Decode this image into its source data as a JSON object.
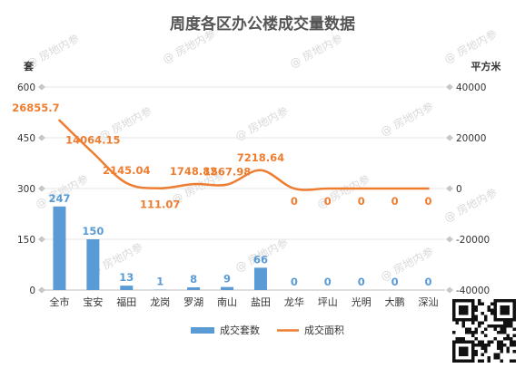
{
  "chart_data": {
    "type": "bar+line",
    "title": "周度各区办公楼成交量数据",
    "categories": [
      "全市",
      "宝安",
      "福田",
      "龙岗",
      "罗湖",
      "南山",
      "盐田",
      "龙华",
      "坪山",
      "光明",
      "大鹏",
      "深汕"
    ],
    "series": [
      {
        "name": "成交套数",
        "type": "bar",
        "axis": "left",
        "color": "#5b9bd5",
        "values": [
          247,
          150,
          13,
          1,
          8,
          9,
          66,
          0,
          0,
          0,
          0,
          0
        ],
        "labels": [
          "247",
          "150",
          "13",
          "1",
          "8",
          "9",
          "66",
          "0",
          "0",
          "0",
          "0",
          "0"
        ]
      },
      {
        "name": "成交面积",
        "type": "line",
        "smooth": true,
        "axis": "right",
        "color": "#ed7d31",
        "values": [
          26855.7,
          14064.15,
          2145.04,
          111.07,
          1748.82,
          1567.98,
          7218.64,
          0,
          0,
          0,
          0,
          0
        ],
        "labels": [
          "26855.7",
          "14064.15",
          "2145.04",
          "111.07",
          "1748.82",
          "1567.98",
          "7218.64",
          "0",
          "0",
          "0",
          "0",
          "0"
        ]
      }
    ],
    "left_axis": {
      "unit": "套",
      "min": 0,
      "max": 600,
      "ticks": [
        0,
        150,
        300,
        450,
        600
      ],
      "tick_labels": [
        "0",
        "150",
        "300",
        "450",
        "600"
      ]
    },
    "right_axis": {
      "unit": "平方米",
      "min": -40000,
      "max": 40000,
      "ticks": [
        -40000,
        -20000,
        0,
        20000,
        40000
      ],
      "tick_labels": [
        "-40000",
        "-20000",
        "0",
        "20000",
        "40000"
      ]
    },
    "grid": true,
    "legend_position": "bottom"
  },
  "watermark": "@ 房地内参",
  "qr_code": "qr-code"
}
